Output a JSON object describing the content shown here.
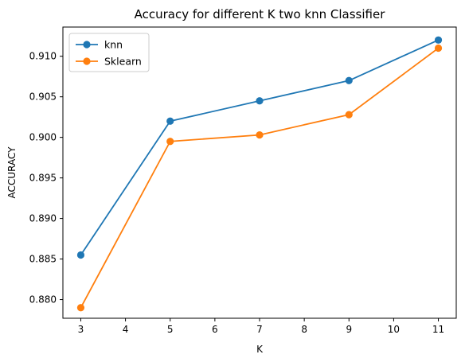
{
  "chart_data": {
    "type": "line",
    "title": "Accuracy for different K two knn Classifier",
    "xlabel": "K",
    "ylabel": "ACCURACY",
    "x": [
      3,
      5,
      7,
      9,
      11
    ],
    "xlim": [
      2.6,
      11.4
    ],
    "ylim": [
      0.8777,
      0.9136
    ],
    "xticks": [
      "3",
      "4",
      "5",
      "6",
      "7",
      "8",
      "9",
      "10",
      "11"
    ],
    "yticks": [
      "0.880",
      "0.885",
      "0.890",
      "0.895",
      "0.900",
      "0.905",
      "0.910"
    ],
    "grid": false,
    "legend_position": "upper left",
    "series": [
      {
        "name": "knn",
        "color": "#1f77b4",
        "marker": "circle",
        "values": [
          0.8855,
          0.902,
          0.9045,
          0.907,
          0.912
        ]
      },
      {
        "name": "Sklearn",
        "color": "#ff7f0e",
        "marker": "circle",
        "values": [
          0.879,
          0.8995,
          0.9003,
          0.9028,
          0.911
        ]
      }
    ]
  }
}
